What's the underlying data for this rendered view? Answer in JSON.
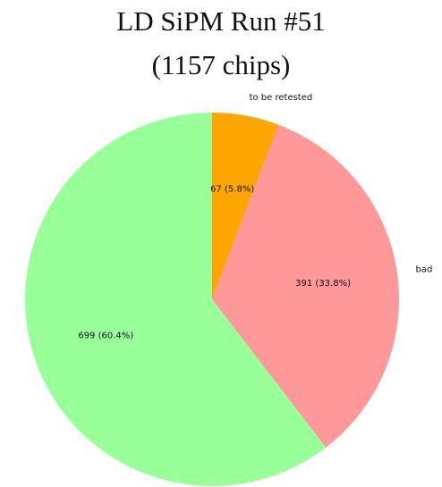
{
  "chart_data": {
    "type": "pie",
    "title": "LD SiPM Run #51",
    "subtitle": "(1157 chips)",
    "total": 1157,
    "start_angle_deg": 90,
    "direction": "clockwise",
    "slices": [
      {
        "label": "to be retested",
        "value": 67,
        "percent": 5.8,
        "value_text": "67 (5.8%)",
        "color": "#ffa500"
      },
      {
        "label": "bad",
        "value": 391,
        "percent": 33.8,
        "value_text": "391 (33.8%)",
        "color": "#ff9999"
      },
      {
        "label": "",
        "value": 699,
        "percent": 60.4,
        "value_text": "699 (60.4%)",
        "color": "#99ff99"
      }
    ]
  }
}
